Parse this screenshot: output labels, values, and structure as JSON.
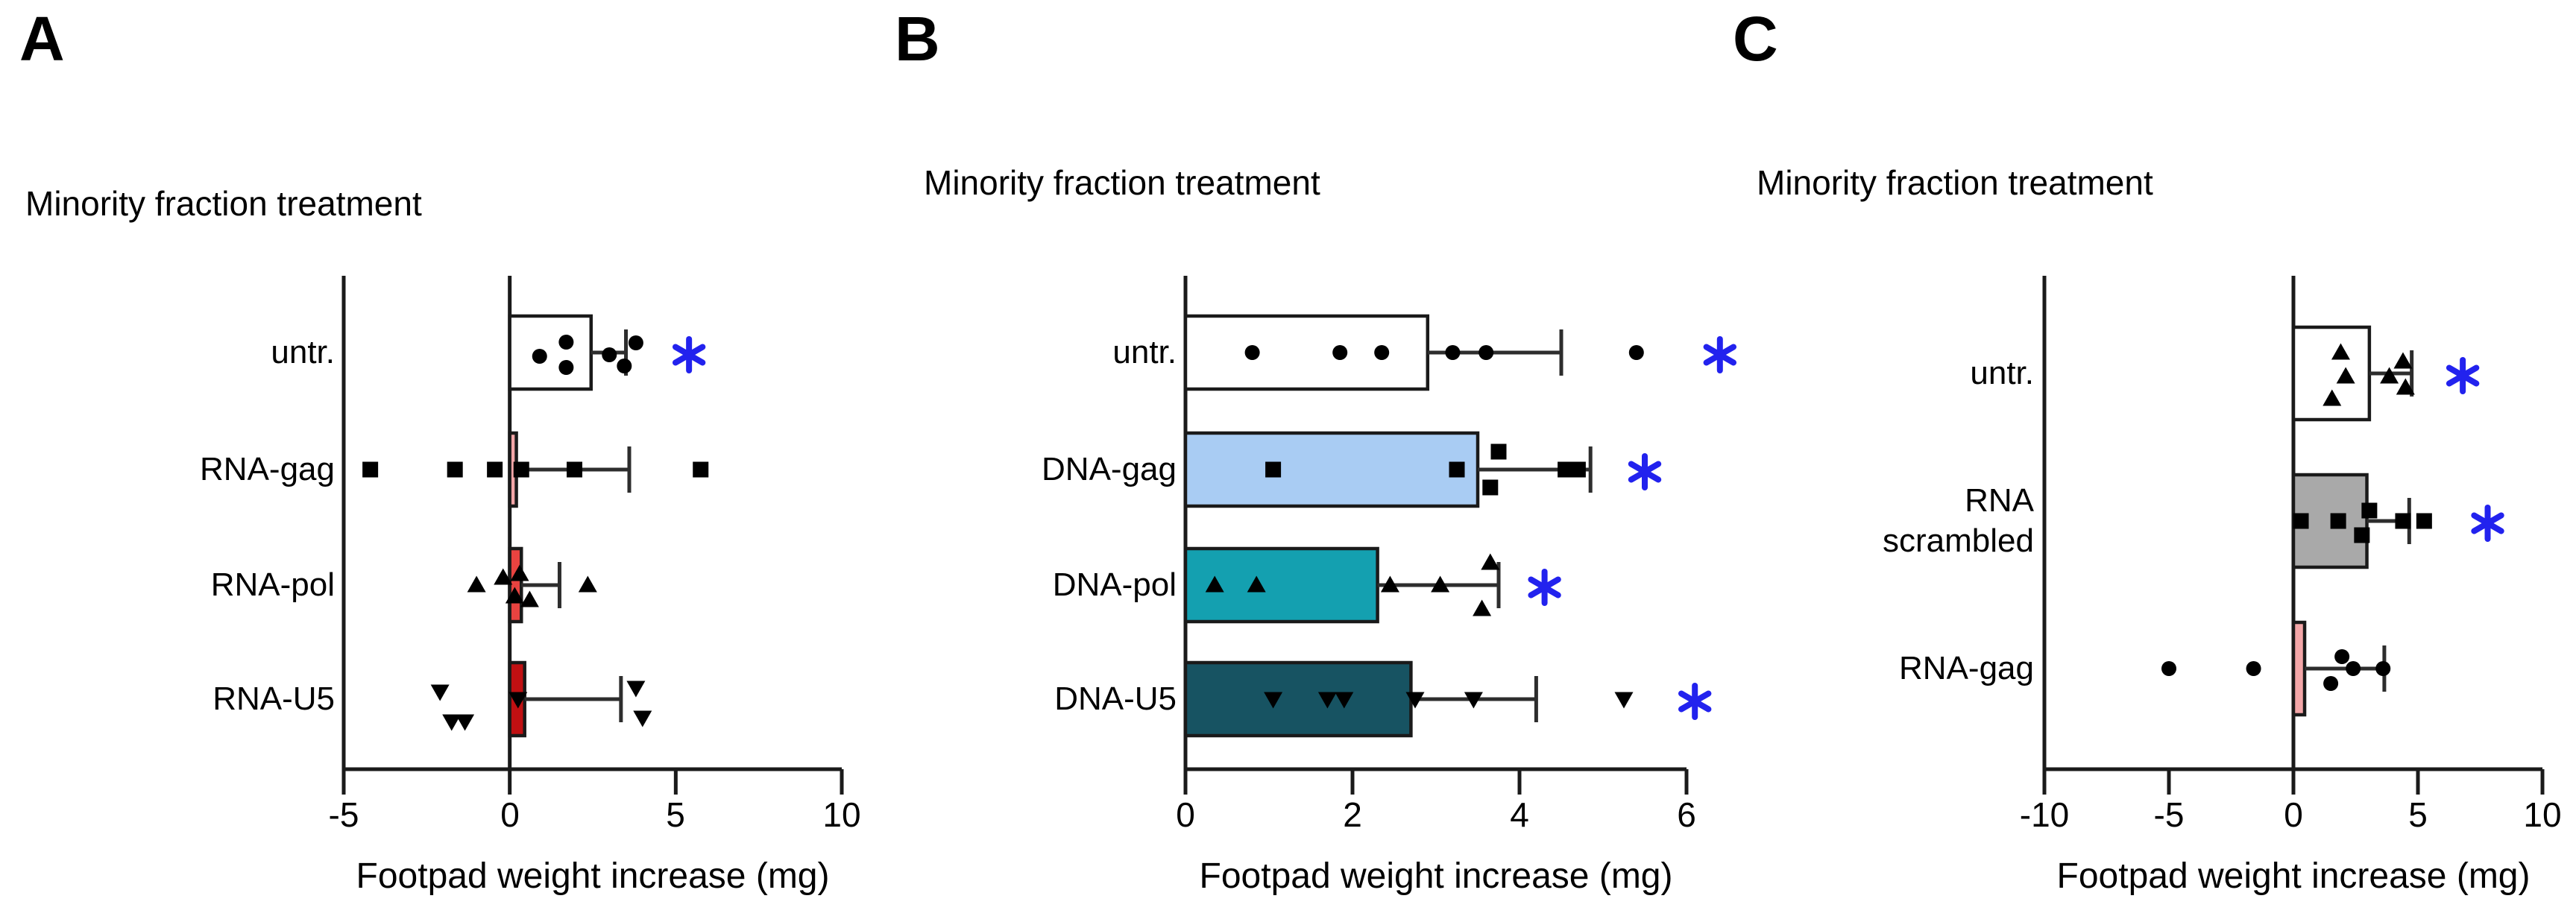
{
  "figure_title": "Minority fraction treatment",
  "colors": {
    "axis": "#1a1a1a",
    "bar_border": "#1a1a1a",
    "error_bar": "#2d2d2d",
    "marker": "#000000",
    "significance_asterisk": "#2222ee",
    "panel_a_rna_gag": "#f3a6a8",
    "panel_a_rna_pol": "#e94340",
    "panel_a_rna_u5": "#c01012",
    "panel_b_dna_gag": "#a9ccf3",
    "panel_b_dna_pol": "#14a0b0",
    "panel_b_dna_u5": "#175362",
    "panel_c_scrambled": "#a9a9a9",
    "panel_c_rna_gag": "#f3a6a8"
  },
  "chart_data": [
    {
      "type": "bar",
      "orientation": "horizontal",
      "letter": "A",
      "title": "Minority fraction treatment",
      "xlabel": "Footpad weight increase (mg)",
      "xlim": [
        -5,
        10
      ],
      "xticks": [
        -5,
        0,
        5,
        10
      ],
      "grid": false,
      "legend": null,
      "value_unit": "mg",
      "rows": [
        {
          "label": "untr.",
          "marker": "circle",
          "bar": 2.45,
          "color": "#ffffff",
          "whisker": 3.5,
          "asterisk": 5.4,
          "points": [
            [
              0.9,
              5
            ],
            [
              1.7,
              -14
            ],
            [
              1.7,
              20
            ],
            [
              3.0,
              3
            ],
            [
              3.45,
              18
            ],
            [
              3.8,
              -13
            ]
          ]
        },
        {
          "label": "RNA-gag",
          "marker": "square",
          "bar": 0.2,
          "color": "#f3a6a8",
          "whisker": 3.6,
          "asterisk": null,
          "points": [
            [
              -4.2,
              0
            ],
            [
              -1.65,
              0
            ],
            [
              -0.45,
              0
            ],
            [
              0.35,
              0
            ],
            [
              1.95,
              0
            ],
            [
              5.75,
              0
            ]
          ]
        },
        {
          "label": "RNA-pol",
          "marker": "triangle-up",
          "bar": 0.35,
          "color": "#e94340",
          "whisker": 1.5,
          "asterisk": null,
          "points": [
            [
              -1.0,
              0
            ],
            [
              -0.2,
              -10
            ],
            [
              0.15,
              15
            ],
            [
              0.3,
              -15
            ],
            [
              0.6,
              20
            ],
            [
              2.35,
              0
            ]
          ]
        },
        {
          "label": "RNA-U5",
          "marker": "triangle-down",
          "bar": 0.45,
          "color": "#c01012",
          "whisker": 3.35,
          "asterisk": null,
          "points": [
            [
              -2.1,
              -10
            ],
            [
              -1.75,
              30
            ],
            [
              -1.35,
              30
            ],
            [
              0.25,
              0
            ],
            [
              3.8,
              -15
            ],
            [
              4.0,
              25
            ]
          ]
        }
      ]
    },
    {
      "type": "bar",
      "orientation": "horizontal",
      "letter": "B",
      "title": "Minority fraction treatment",
      "xlabel": "Footpad weight increase (mg)",
      "xlim": [
        0,
        6
      ],
      "xticks": [
        0,
        2,
        4,
        6
      ],
      "grid": false,
      "legend": null,
      "value_unit": "mg",
      "rows": [
        {
          "label": "untr.",
          "marker": "circle",
          "bar": 2.9,
          "color": "#ffffff",
          "whisker": 4.5,
          "asterisk": 6.4,
          "points": [
            [
              0.8,
              0
            ],
            [
              1.85,
              0
            ],
            [
              2.35,
              0
            ],
            [
              3.2,
              0
            ],
            [
              3.6,
              0
            ],
            [
              5.4,
              0
            ]
          ]
        },
        {
          "label": "DNA-gag",
          "marker": "square",
          "bar": 3.5,
          "color": "#a9ccf3",
          "whisker": 4.85,
          "asterisk": 5.5,
          "points": [
            [
              1.05,
              0
            ],
            [
              3.25,
              0
            ],
            [
              3.65,
              24
            ],
            [
              3.75,
              -24
            ],
            [
              4.55,
              0
            ],
            [
              4.7,
              0
            ]
          ]
        },
        {
          "label": "DNA-pol",
          "marker": "triangle-up",
          "bar": 2.3,
          "color": "#14a0b0",
          "whisker": 3.75,
          "asterisk": 4.3,
          "points": [
            [
              0.35,
              0
            ],
            [
              0.85,
              0
            ],
            [
              2.45,
              0
            ],
            [
              3.05,
              0
            ],
            [
              3.55,
              32
            ],
            [
              3.65,
              -30
            ]
          ]
        },
        {
          "label": "DNA-U5",
          "marker": "triangle-down",
          "bar": 2.7,
          "color": "#175362",
          "whisker": 4.2,
          "asterisk": 6.1,
          "points": [
            [
              1.05,
              0
            ],
            [
              1.7,
              0
            ],
            [
              1.9,
              0
            ],
            [
              2.75,
              0
            ],
            [
              3.45,
              0
            ],
            [
              5.25,
              0
            ]
          ]
        }
      ]
    },
    {
      "type": "bar",
      "orientation": "horizontal",
      "letter": "C",
      "title": "Minority fraction treatment",
      "xlabel": "Footpad weight increase (mg)",
      "xlim": [
        -10,
        10
      ],
      "xticks": [
        -10,
        -5,
        0,
        5,
        10
      ],
      "grid": false,
      "legend": null,
      "value_unit": "mg",
      "rows": [
        {
          "label": "untr.",
          "marker": "triangle-up",
          "bar": 3.05,
          "color": "#ffffff",
          "whisker": 4.75,
          "asterisk": 6.8,
          "points": [
            [
              1.55,
              34
            ],
            [
              1.9,
              -28
            ],
            [
              2.1,
              4
            ],
            [
              3.85,
              4
            ],
            [
              4.4,
              -16
            ],
            [
              4.5,
              19
            ]
          ]
        },
        {
          "label": "RNA\nscrambled",
          "marker": "square",
          "bar": 2.95,
          "color": "#a9a9a9",
          "whisker": 4.65,
          "asterisk": 7.8,
          "points": [
            [
              0.3,
              0
            ],
            [
              1.8,
              0
            ],
            [
              2.75,
              19
            ],
            [
              3.05,
              -14
            ],
            [
              4.4,
              0
            ],
            [
              5.25,
              0
            ]
          ]
        },
        {
          "label": "RNA-gag",
          "marker": "circle",
          "bar": 0.45,
          "color": "#f3a6a8",
          "whisker": 3.65,
          "asterisk": null,
          "points": [
            [
              -5.0,
              0
            ],
            [
              -1.6,
              0
            ],
            [
              1.5,
              20
            ],
            [
              1.95,
              -16
            ],
            [
              2.4,
              0
            ],
            [
              3.6,
              0
            ]
          ]
        }
      ]
    }
  ]
}
